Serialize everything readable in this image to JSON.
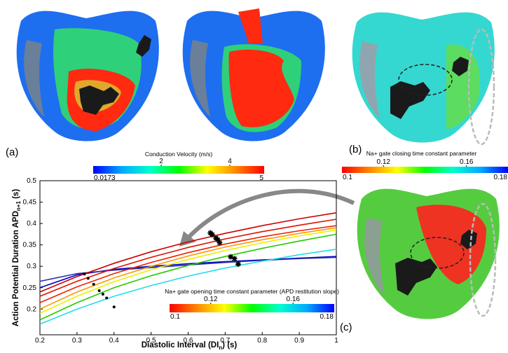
{
  "chart_data": {
    "type": "line",
    "x": [
      0.2,
      0.3,
      0.4,
      0.5,
      0.6,
      0.7,
      0.8,
      0.9,
      1
    ],
    "series": [
      {
        "color": "#0000cc",
        "values": [
          0.25,
          0.28,
          0.293,
          0.3,
          0.306,
          0.311,
          0.315,
          0.319,
          0.323
        ]
      },
      {
        "color": "#2a2aa8",
        "values": [
          0.265,
          0.283,
          0.291,
          0.297,
          0.303,
          0.309,
          0.314,
          0.318,
          0.321
        ]
      },
      {
        "color": "#22ddee",
        "values": [
          0.165,
          0.2,
          0.23,
          0.255,
          0.277,
          0.296,
          0.312,
          0.327,
          0.34
        ]
      },
      {
        "color": "#22cc00",
        "values": [
          0.175,
          0.215,
          0.25,
          0.278,
          0.302,
          0.323,
          0.342,
          0.359,
          0.375
        ]
      },
      {
        "color": "#eeee00",
        "values": [
          0.19,
          0.23,
          0.264,
          0.292,
          0.316,
          0.337,
          0.355,
          0.371,
          0.385
        ]
      },
      {
        "color": "#ff9900",
        "values": [
          0.2,
          0.24,
          0.273,
          0.3,
          0.324,
          0.345,
          0.362,
          0.377,
          0.39
        ]
      },
      {
        "color": "#ee2200",
        "values": [
          0.215,
          0.252,
          0.283,
          0.309,
          0.332,
          0.352,
          0.369,
          0.383,
          0.395
        ]
      },
      {
        "color": "#dd1100",
        "values": [
          0.23,
          0.265,
          0.295,
          0.321,
          0.344,
          0.364,
          0.381,
          0.396,
          0.41
        ]
      },
      {
        "color": "#cc0000",
        "values": [
          0.24,
          0.276,
          0.307,
          0.334,
          0.357,
          0.377,
          0.395,
          0.411,
          0.425
        ]
      }
    ],
    "points": [
      {
        "marker": "star",
        "color": "#000000",
        "x": [
          0.66,
          0.665,
          0.675,
          0.68,
          0.685,
          0.715,
          0.725,
          0.735
        ],
        "values": [
          0.378,
          0.374,
          0.366,
          0.362,
          0.355,
          0.322,
          0.318,
          0.305
        ]
      },
      {
        "marker": "dot",
        "color": "#000000",
        "x": [
          0.32,
          0.33,
          0.345,
          0.36,
          0.37,
          0.38,
          0.4
        ],
        "values": [
          0.282,
          0.272,
          0.258,
          0.243,
          0.235,
          0.226,
          0.205
        ]
      }
    ],
    "xlim": [
      0.2,
      1
    ],
    "ylim": [
      0.14,
      0.5
    ],
    "xticks": [
      0.2,
      0.3,
      0.4,
      0.5,
      0.6,
      0.7,
      0.8,
      0.9,
      1
    ],
    "yticks": [
      0.2,
      0.25,
      0.3,
      0.35,
      0.4,
      0.45,
      0.5
    ],
    "x_label": {
      "main": "Diastolic Interval (DI",
      "sub": "n",
      "end": ") (s)"
    },
    "y_label": {
      "main": "Action Potential Duration APD",
      "sub": "n+1",
      "end": " (s)"
    }
  },
  "panels": {
    "a": "(a)",
    "b": "(b)",
    "c": "(c)"
  },
  "colorbars": [
    {
      "title": "Conduction Velocity (m/s)",
      "lim": [
        0.0173,
        5
      ],
      "ticks": [
        2,
        4
      ],
      "colors": [
        "#0000ff",
        "#00aaff",
        "#00ffcc",
        "#00ff00",
        "#ffff00",
        "#ff8800",
        "#ff0000"
      ]
    },
    {
      "title": "Na+ gate closing time constant parameter",
      "lim": [
        0.1,
        0.18
      ],
      "ticks": [
        0.12,
        0.16
      ],
      "colors": [
        "#ff0000",
        "#ff8800",
        "#ffff00",
        "#00ff00",
        "#00ffcc",
        "#00aaff",
        "#0000ff"
      ]
    },
    {
      "title": "Na+ gate opening time constant parameter (APD restitution slope)",
      "lim": [
        0.1,
        0.18
      ],
      "ticks": [
        0.12,
        0.16
      ],
      "colors": [
        "#ff0000",
        "#ff8800",
        "#ffff00",
        "#00ff00",
        "#00ffcc",
        "#00aaff",
        "#0000ff"
      ]
    }
  ]
}
